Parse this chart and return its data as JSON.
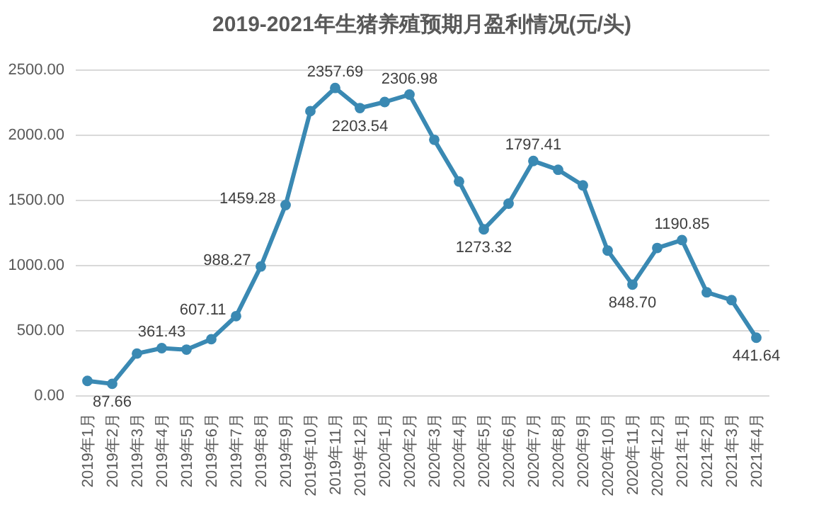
{
  "chart_data": {
    "type": "line",
    "title": "2019-2021年生猪养殖预期月盈利情况(元/头)",
    "categories": [
      "2019年1月",
      "2019年2月",
      "2019年3月",
      "2019年4月",
      "2019年5月",
      "2019年6月",
      "2019年7月",
      "2019年8月",
      "2019年9月",
      "2019年10月",
      "2019年11月",
      "2019年12月",
      "2020年1月",
      "2020年2月",
      "2020年3月",
      "2020年4月",
      "2020年5月",
      "2020年6月",
      "2020年7月",
      "2020年8月",
      "2020年9月",
      "2020年10月",
      "2020年11月",
      "2020年12月",
      "2021年1月",
      "2021年2月",
      "2021年3月",
      "2021年4月"
    ],
    "series": [
      {
        "color": "#3a89b3",
        "values": [
          110,
          87.66,
          320,
          361.43,
          350,
          430,
          607.11,
          988.27,
          1459.28,
          2180,
          2357.69,
          2203.54,
          2250,
          2306.98,
          1960,
          1640,
          1273.32,
          1470,
          1797.41,
          1730,
          1610,
          1110,
          848.7,
          1130,
          1190.85,
          790,
          730,
          441.64
        ],
        "value_labels": [
          null,
          "87.66",
          null,
          "361.43",
          null,
          null,
          "607.11",
          "988.27",
          "1459.28",
          null,
          "2357.69",
          "2203.54",
          null,
          "2306.98",
          null,
          null,
          "1273.32",
          null,
          "1797.41",
          null,
          null,
          null,
          "848.70",
          null,
          "1190.85",
          null,
          null,
          "441.64"
        ]
      }
    ],
    "ylim": [
      0,
      2500
    ],
    "yticks": [
      {
        "value": 0,
        "label": "0.00"
      },
      {
        "value": 500,
        "label": "500.00"
      },
      {
        "value": 1000,
        "label": "1000.00"
      },
      {
        "value": 1500,
        "label": "1500.00"
      },
      {
        "value": 2000,
        "label": "2000.00"
      },
      {
        "value": 2500,
        "label": "2500.00"
      }
    ],
    "grid": "y",
    "marker": "circle",
    "line_style": "solid"
  }
}
